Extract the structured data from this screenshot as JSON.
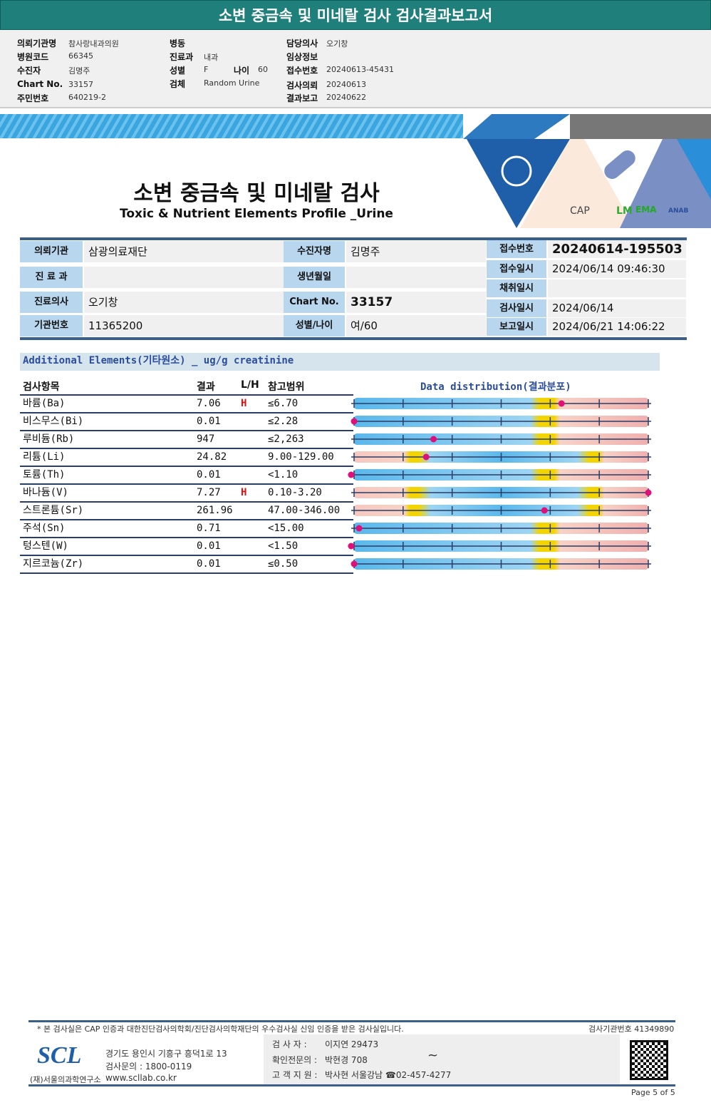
{
  "header": {
    "title": "소변 중금속 및 미네랄 검사 검사결과보고서",
    "fields": [
      {
        "label": "의뢰기관명",
        "value": "참사랑내과의원"
      },
      {
        "label": "병원코드",
        "value": "66345"
      },
      {
        "label": "수진자",
        "value": "김명주"
      },
      {
        "label": "Chart No.",
        "value": "33157"
      },
      {
        "label": "주민번호",
        "value": "640219-2"
      },
      {
        "label": "병동",
        "value": ""
      },
      {
        "label": "진료과",
        "value": "내과"
      },
      {
        "label": "성별",
        "value": "F"
      },
      {
        "label": "나이",
        "value": "60"
      },
      {
        "label": "검체",
        "value": "Random Urine"
      },
      {
        "label": "담당의사",
        "value": "오기창"
      },
      {
        "label": "임상정보",
        "value": ""
      },
      {
        "label": "접수번호",
        "value": "20240613-45431"
      },
      {
        "label": "검사의뢰",
        "value": "20240613"
      },
      {
        "label": "결과보고",
        "value": "20240622"
      }
    ]
  },
  "banner": {
    "title_ko": "소변 중금속 및 미네랄 검사",
    "title_en": "Toxic & Nutrient Elements Profile _Urine",
    "logos": [
      "CAP ACCREDITED",
      "LM",
      "EMA",
      "ANAB"
    ]
  },
  "info": [
    {
      "label": "의뢰기관",
      "value": "삼광의료재단"
    },
    {
      "label": "수진자명",
      "value": "김명주"
    },
    {
      "label": "진 료 과",
      "value": ""
    },
    {
      "label": "생년월일",
      "value": ""
    },
    {
      "label": "진료의사",
      "value": "오기창"
    },
    {
      "label": "Chart No.",
      "value": "33157"
    },
    {
      "label": "기관번호",
      "value": "11365200"
    },
    {
      "label": "성별/나이",
      "value": "여/60"
    },
    {
      "label": "접수번호",
      "value": "20240614-195503"
    },
    {
      "label": "접수일시",
      "value": "2024/06/14 09:46:30"
    },
    {
      "label": "채취일시",
      "value": ""
    },
    {
      "label": "검사일시",
      "value": "2024/06/14"
    },
    {
      "label": "보고일시",
      "value": "2024/06/21 14:06:22"
    }
  ],
  "section": {
    "title": "Additional Elements(기타원소) _ ug/g creatinine",
    "columns": [
      "검사항목",
      "결과",
      "L/H",
      "참고범위"
    ],
    "distribution_title": "Data distribution(결과분포)",
    "rows": [
      {
        "name": "바륨(Ba)",
        "result": "7.06",
        "flag": "H",
        "range": "≤6.70",
        "range_type": "upper",
        "position": 0.705
      },
      {
        "name": "비스무스(Bi)",
        "result": "0.01",
        "flag": "",
        "range": "≤2.28",
        "range_type": "upper",
        "position": 0
      },
      {
        "name": "루비듐(Rb)",
        "result": "947",
        "flag": "",
        "range": "≤2,263",
        "range_type": "upper",
        "position": 0.27
      },
      {
        "name": "리튬(Li)",
        "result": "24.82",
        "flag": "",
        "range": "9.00-129.00",
        "range_type": "range",
        "position": 0.245
      },
      {
        "name": "토륨(Th)",
        "result": "0.01",
        "flag": "",
        "range": "<1.10",
        "range_type": "upper",
        "position": -0.01
      },
      {
        "name": "바나듐(V)",
        "result": "7.27",
        "flag": "H",
        "range": "0.10-3.20",
        "range_type": "range",
        "position": 1.0
      },
      {
        "name": "스트론튬(Sr)",
        "result": "261.96",
        "flag": "",
        "range": "47.00-346.00",
        "range_type": "range",
        "position": 0.647
      },
      {
        "name": "주석(Sn)",
        "result": "0.71",
        "flag": "",
        "range": "<15.00",
        "range_type": "upper",
        "position": 0.017
      },
      {
        "name": "텅스텐(W)",
        "result": "0.01",
        "flag": "",
        "range": "<1.50",
        "range_type": "upper",
        "position": -0.01
      },
      {
        "name": "지르코늄(Zr)",
        "result": "0.01",
        "flag": "",
        "range": "≤0.50",
        "range_type": "upper",
        "position": 0
      }
    ]
  },
  "footer": {
    "notice": "* 본 검사실은 CAP 인증과 대한진단검사의학회/진단검사의학재단의 우수검사실 신임 인증을 받은 검사실입니다.",
    "lab_no": "검사기관번호 41349890",
    "logo": "SCL",
    "org": "(재)서울의과학연구소",
    "address": "경기도 용인시 기흥구 흥덕1로 13",
    "phone": "검사문의 : 1800-0119",
    "web": "www.scllab.co.kr",
    "examiner_label": "검 사 자 :",
    "examiner": "이지연 29473",
    "specialist_label": "확인전문의 :",
    "specialist": "박현경 708",
    "support_label": "고 객 지 원 :",
    "support": "박사현 서울강남 ☎02-457-4277",
    "page": "Page 5 of 5"
  },
  "colors": {
    "header": "#1f7f7a",
    "label_bg": "#b8d6ee",
    "normal": "#5bb8ec",
    "abnormal": "#f2b8b4",
    "border": "#edd000",
    "marker": "#e0107a",
    "flag": "#e01010"
  }
}
